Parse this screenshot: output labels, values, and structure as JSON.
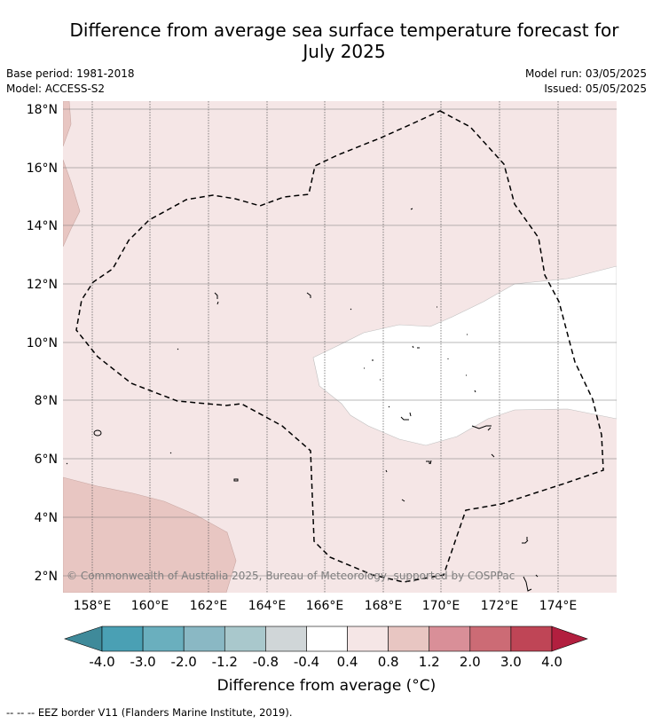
{
  "title": "Difference from average sea surface temperature forecast for July 2025",
  "title_line1": "Difference from average sea surface temperature forecast for",
  "title_line2": "July 2025",
  "base_period": "Base period: 1981-2018",
  "model": "Model: ACCESS-S2",
  "model_run": "Model run: 03/05/2025",
  "issued": "Issued: 05/05/2025",
  "copyright": "© Commonwealth of Australia 2025, Bureau of Meteorology, supported by COSPPac",
  "lat_labels": [
    "18°N",
    "16°N",
    "14°N",
    "12°N",
    "10°N",
    "8°N",
    "6°N",
    "4°N",
    "2°N"
  ],
  "lon_labels": [
    "158°E",
    "160°E",
    "162°E",
    "164°E",
    "166°E",
    "168°E",
    "170°E",
    "172°E",
    "174°E"
  ],
  "colorbar": {
    "label": "Difference from average (°C)",
    "ticks": [
      "-4.0",
      "-3.0",
      "-2.0",
      "-1.2",
      "-0.8",
      "-0.4",
      "0.4",
      "0.8",
      "1.2",
      "2.0",
      "3.0",
      "4.0"
    ],
    "colors": [
      "#3f8a9a",
      "#4aa0b4",
      "#6aafbe",
      "#8ab8c4",
      "#a9c8cc",
      "#d0d6d8",
      "#ffffff",
      "#f5e6e6",
      "#e8c6c2",
      "#d98f98",
      "#cc6b75",
      "#bf4556",
      "#b21f3f"
    ]
  },
  "legend_note": "--  --  -- EEZ border V11 (Flanders Marine Institute, 2019).",
  "map_colors": {
    "band_0.4_0.8": "#f5e6e6",
    "band_0.8_1.2": "#e8c6c2",
    "band_-0.4_0.4": "#ffffff"
  }
}
